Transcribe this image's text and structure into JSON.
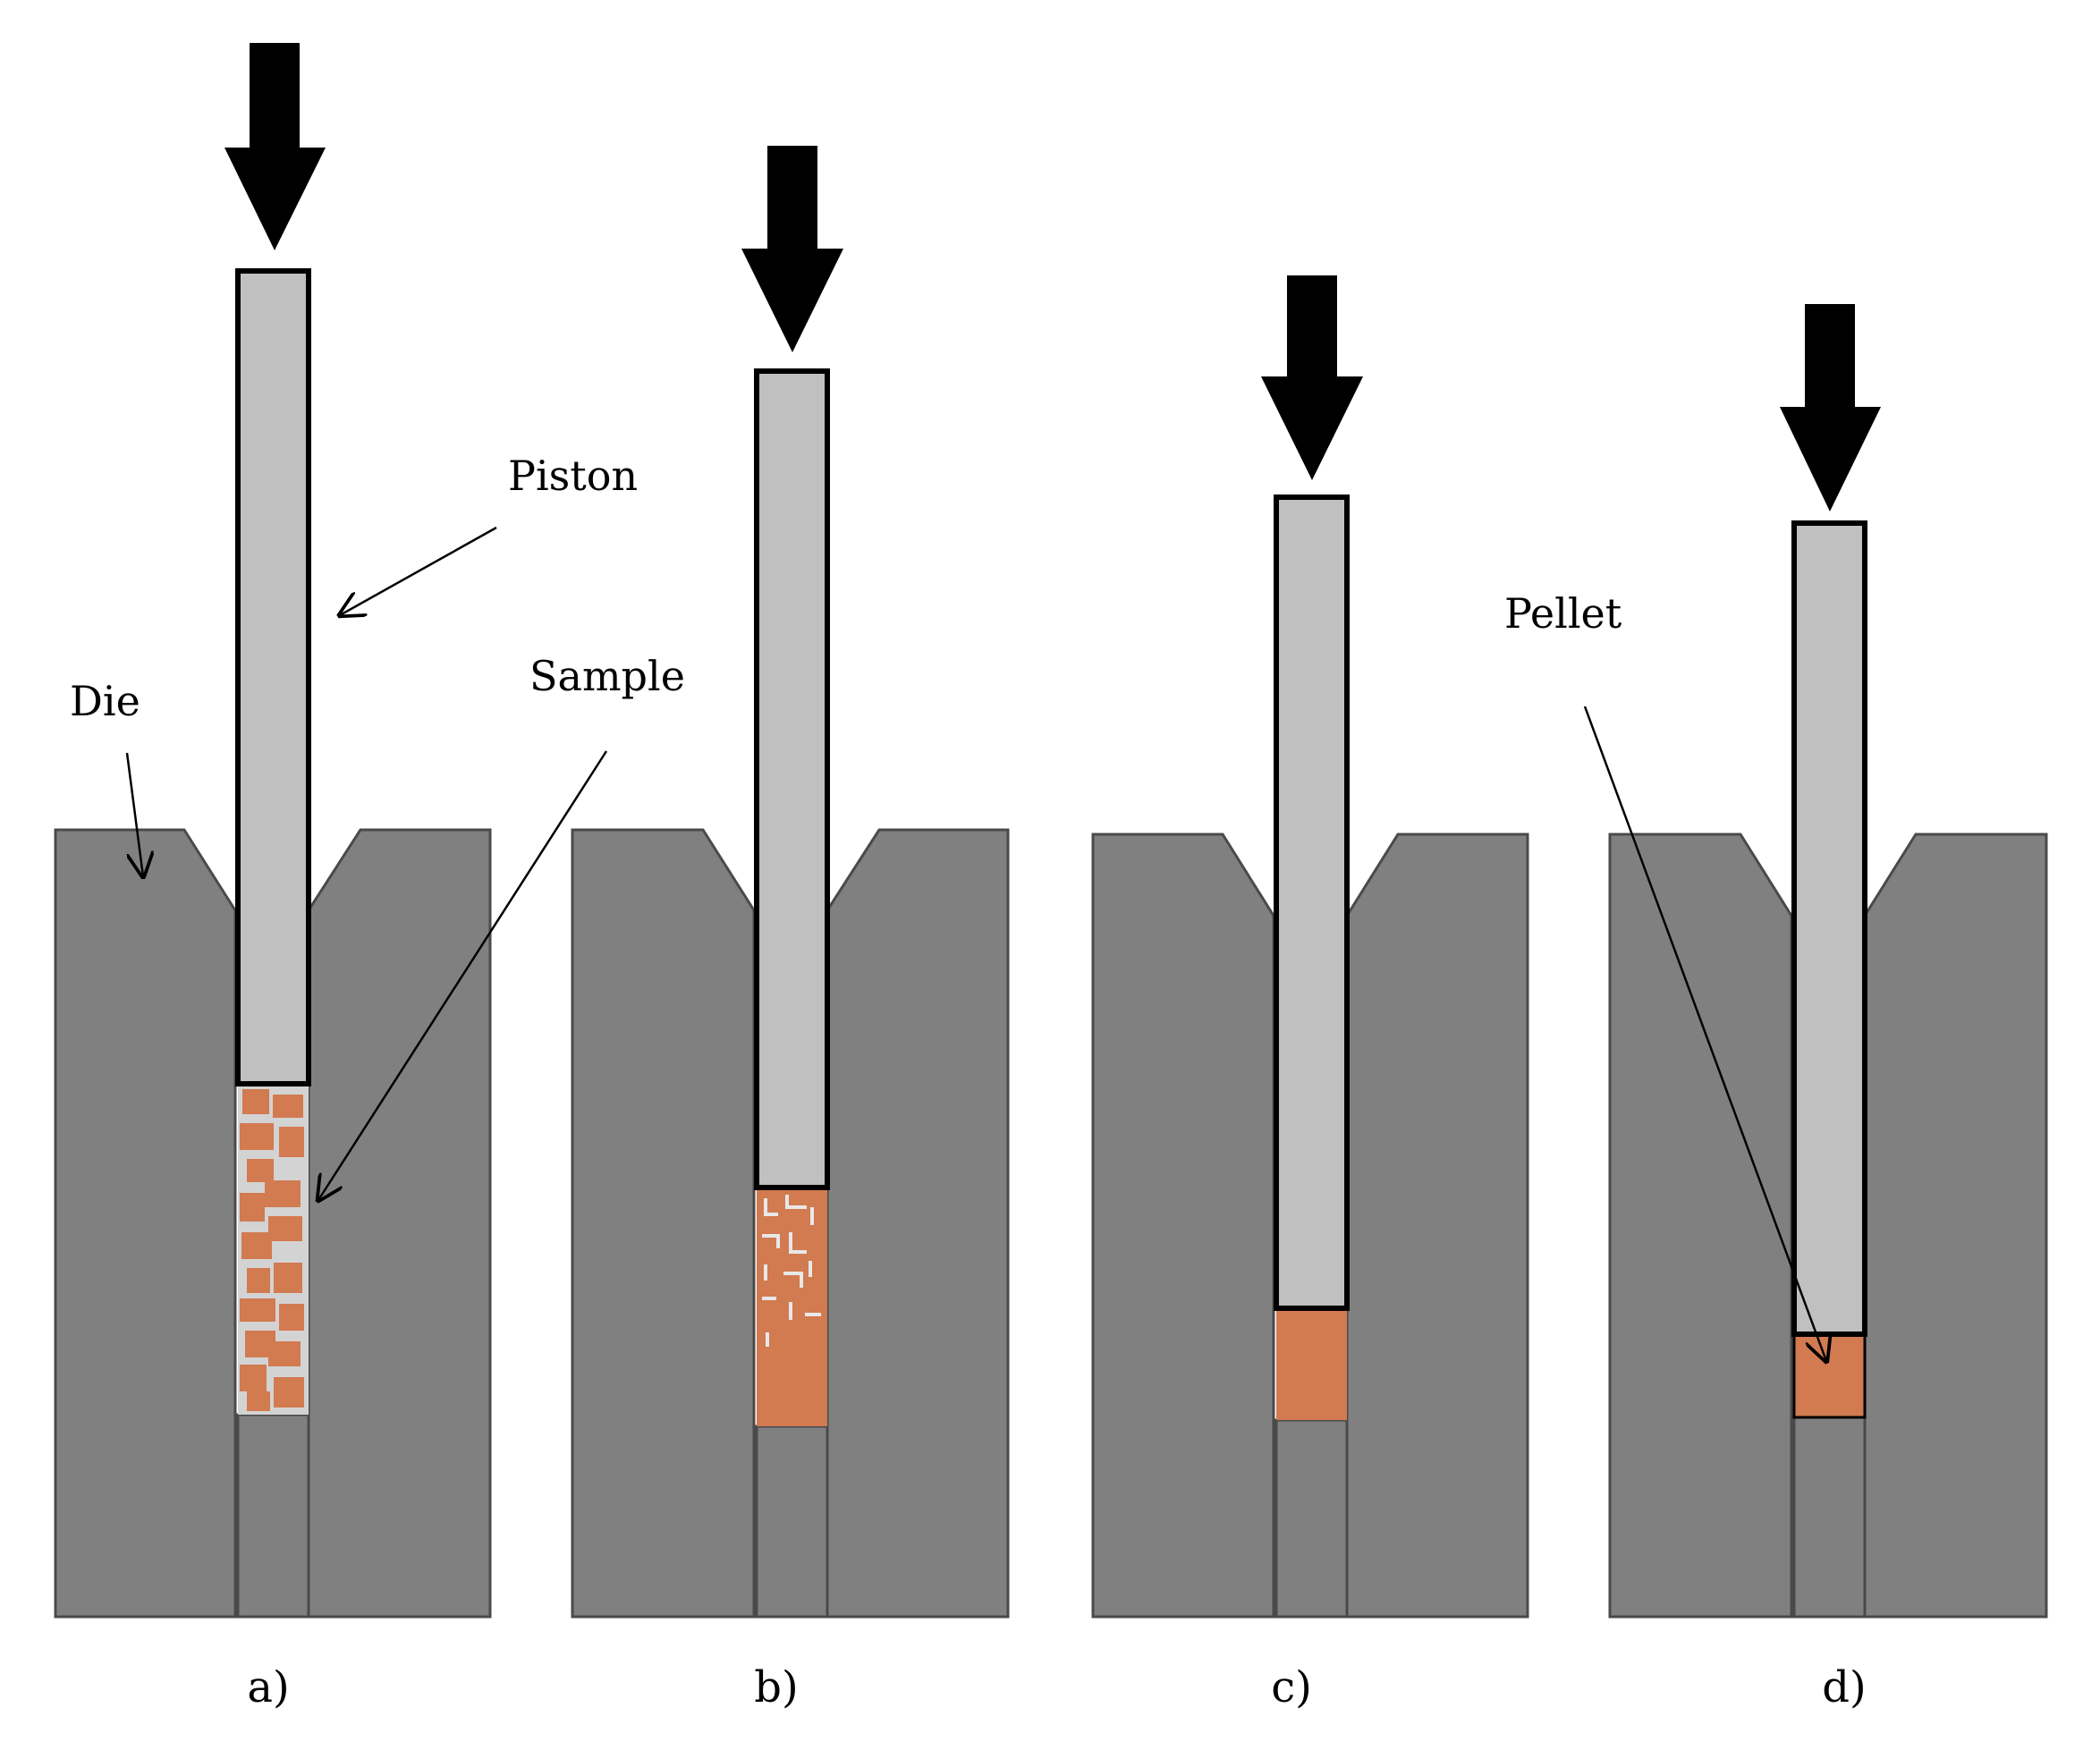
{
  "labels": {
    "piston": "Piston",
    "sample": "Sample",
    "die": "Die",
    "pellet": "Pellet"
  },
  "panels": [
    {
      "id": "a",
      "caption": "a)"
    },
    {
      "id": "b",
      "caption": "b)"
    },
    {
      "id": "c",
      "caption": "c)"
    },
    {
      "id": "d",
      "caption": "d)"
    }
  ],
  "colors": {
    "die": "#808080",
    "piston": "#c0c0c0",
    "sample": "#d27a50",
    "powder_background": "#d3d3d3",
    "arrow": "#000000",
    "outline": "#000000"
  }
}
